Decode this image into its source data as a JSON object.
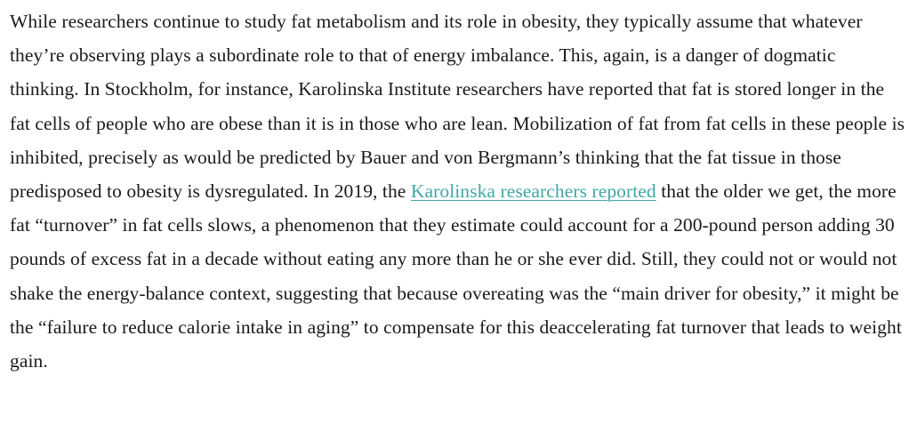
{
  "article": {
    "paragraph": {
      "text_before": "While researchers continue to study fat metabolism and its role in obesity, they typically assume that whatever they’re observing plays a subordinate role to that of energy imbalance. This, again, is a danger of dogmatic thinking. In Stockholm, for instance, Karolinska Institute researchers have reported that fat is stored longer in the fat cells of people who are obese than it is in those who are lean. Mobilization of fat from fat cells in these people is inhibited, precisely as would be predicted by Bauer and von Bergmann’s thinking that the fat tissue in those predisposed to obesity is dysregulated. In 2019, the ",
      "link_text": "Karolinska researchers reported",
      "text_after": " that the older we get, the more fat “turnover” in fat cells slows, a phenomenon that they estimate could account for a 200-pound person adding 30 pounds of excess fat in a decade without eating any more than he or she ever did. Still, they could not or would not shake the energy-balance context, suggesting that because overeating was the “main driver for obesity,” it might be the “failure to reduce calorie intake in aging” to compensate for this deaccelerating fat turnover that leads to weight gain."
    },
    "colors": {
      "text": "#1a1a1a",
      "link": "#3fa7a3",
      "background": "#ffffff"
    }
  }
}
